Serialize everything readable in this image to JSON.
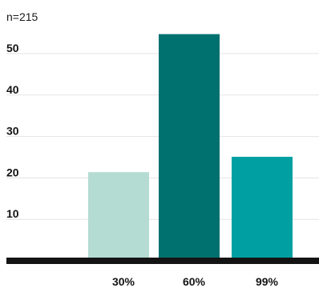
{
  "chart_data": {
    "type": "bar",
    "note": "n=215",
    "categories": [
      "30%",
      "60%",
      "99%"
    ],
    "values": [
      21.4,
      54.7,
      25.1
    ],
    "bar_colors": [
      "#b4dcd2",
      "#00716f",
      "#00a0a2"
    ],
    "y_ticks": [
      10,
      20,
      30,
      40,
      50
    ],
    "ylim": [
      0,
      60
    ],
    "grid": true,
    "title": "",
    "xlabel": "",
    "ylabel": ""
  }
}
